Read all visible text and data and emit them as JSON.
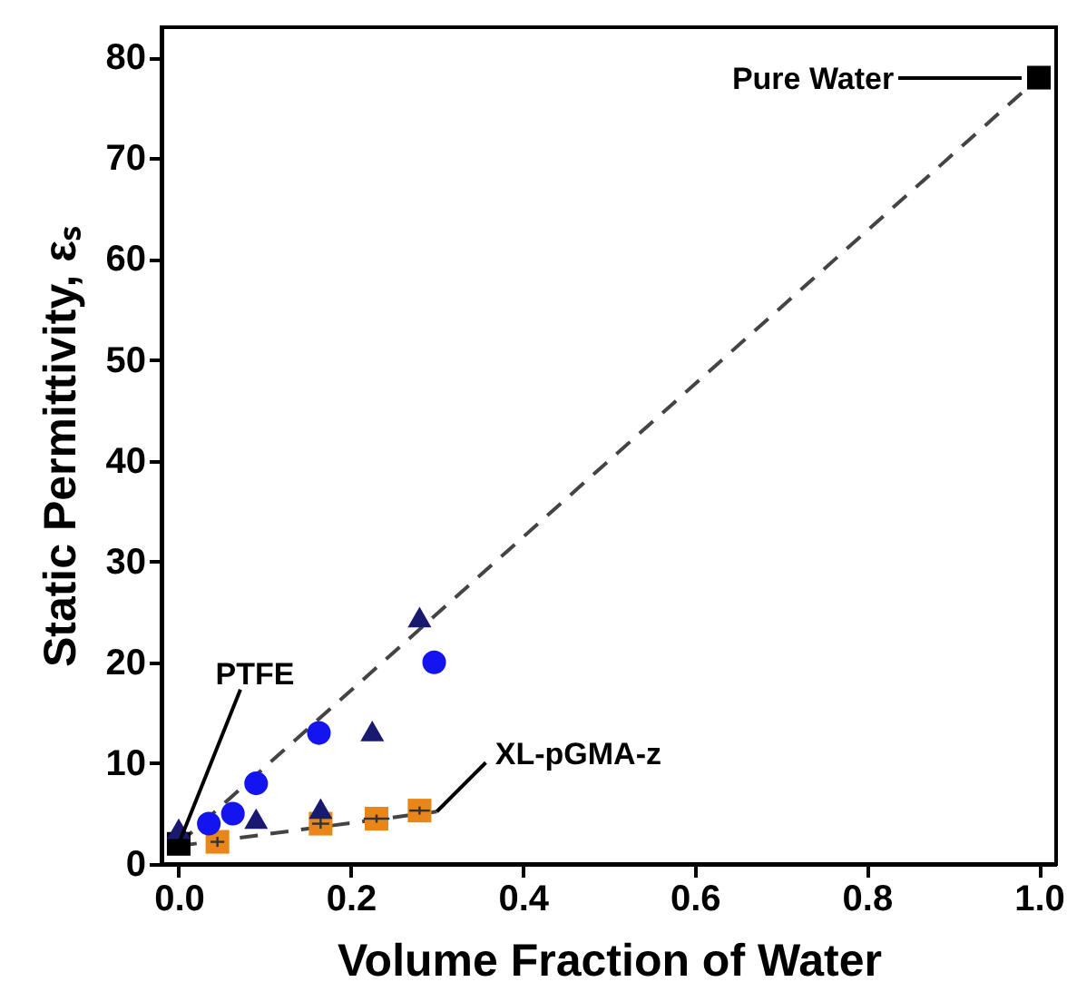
{
  "chart_data": {
    "type": "scatter",
    "xlabel": "Volume Fraction of Water",
    "ylabel": "Static Permittivity, εₛ",
    "xlim": [
      -0.02,
      1.02
    ],
    "xticks": [
      {
        "value": 0,
        "label": "0.0"
      },
      0.2,
      0.4,
      0.6,
      0.8,
      {
        "value": 1,
        "label": "1.0"
      }
    ],
    "ylim": [
      0,
      83
    ],
    "yticks": [
      0,
      10,
      20,
      30,
      40,
      50,
      60,
      70,
      80
    ],
    "grid": false,
    "series": [
      {
        "type": "line",
        "color": "#444444",
        "line_style": "dashed",
        "x": [
          0,
          1
        ],
        "values": [
          2,
          78
        ]
      },
      {
        "type": "line",
        "color": "#444444",
        "line_style": "dashed",
        "x": [
          0,
          0.3
        ],
        "values": [
          1.8,
          5.2
        ]
      },
      {
        "color": "#000000",
        "marker": "square",
        "x": [
          0,
          1
        ],
        "values": [
          2,
          78
        ]
      },
      {
        "color": "#e8861a",
        "marker": "square",
        "x": [
          0.045,
          0.165,
          0.23,
          0.28
        ],
        "values": [
          2.2,
          4,
          4.5,
          5.3
        ],
        "xerrors": [
          0.008,
          0.01,
          0.015,
          0.012
        ],
        "errors": [
          0.5,
          0.5,
          0.4,
          0.4
        ]
      },
      {
        "color": "#191970",
        "marker": "triangle",
        "x": [
          0,
          0.09,
          0.165,
          0.225,
          0.28
        ],
        "values": [
          3.5,
          4.5,
          5.5,
          13.2,
          24.5
        ]
      },
      {
        "color": "#1414f0",
        "marker": "circle",
        "x": [
          0.035,
          0.063,
          0.09,
          0.163,
          0.297
        ],
        "values": [
          4,
          5,
          8,
          13,
          20
        ]
      }
    ],
    "annotations": [
      {
        "text": "PTFE",
        "x": 0,
        "y": 2
      },
      "Pure Water",
      {
        "text": "XL-pGMA-z",
        "x": 0.3,
        "y": 5.2
      }
    ]
  }
}
